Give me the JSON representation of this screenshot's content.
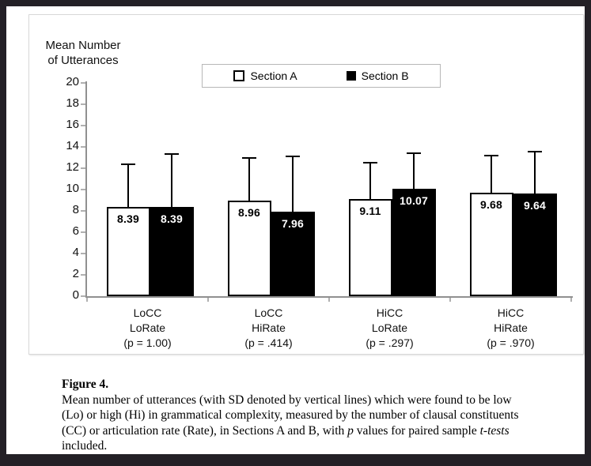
{
  "chart_data": {
    "type": "bar",
    "title": "",
    "ylabel_lines": [
      "Mean Number",
      "of Utterances"
    ],
    "xlabel": "",
    "ylim": [
      0,
      20
    ],
    "ytick_step": 2,
    "grid": false,
    "legend_position": "top-center",
    "error_bars": "SD upper whiskers",
    "categories": [
      [
        "LoCC",
        "LoRate",
        "(p = 1.00)"
      ],
      [
        "LoCC",
        "HiRate",
        "(p = .414)"
      ],
      [
        "HiCC",
        "LoRate",
        "(p = .297)"
      ],
      [
        "HiCC",
        "HiRate",
        "(p = .970)"
      ]
    ],
    "series": [
      {
        "name": "Section A",
        "fill": "#ffffff",
        "text_color": "#000000",
        "values": [
          8.39,
          8.96,
          9.11,
          9.68
        ],
        "value_labels": [
          "8.39",
          "8.96",
          "9.11",
          "9.68"
        ],
        "sd_whisker_tops": [
          12.35,
          13.0,
          12.5,
          13.2
        ]
      },
      {
        "name": "Section B",
        "fill": "#000000",
        "text_color": "#ffffff",
        "values": [
          8.39,
          7.96,
          10.07,
          9.64
        ],
        "value_labels": [
          "8.39",
          "7.96",
          "10.07",
          "9.64"
        ],
        "sd_whisker_tops": [
          13.35,
          13.1,
          13.4,
          13.55
        ]
      }
    ]
  },
  "caption": {
    "label": "Figure 4.",
    "lines": [
      [
        {
          "t": "Mean number of utterances (with SD denoted by vertical lines) which were found to be low"
        }
      ],
      [
        {
          "t": "(Lo) or high (Hi) in grammatical complexity, measured by the number of clausal constituents"
        }
      ],
      [
        {
          "t": "(CC) or articulation rate (Rate), in Sections A and B, with "
        },
        {
          "t": "p",
          "i": true
        },
        {
          "t": " values for paired sample ",
          "i": false
        },
        {
          "t": "t-tests",
          "i": true
        }
      ],
      [
        {
          "t": "included."
        }
      ]
    ]
  },
  "colors": {
    "frame": "#232026",
    "paper": "#ffffff",
    "axis_line": "#909090",
    "tick": "#b0b0b0",
    "chart_box_border": "#d8d8d8",
    "legend_border": "#b7b7b7",
    "bar_section_a": "#ffffff",
    "bar_section_b": "#000000"
  }
}
